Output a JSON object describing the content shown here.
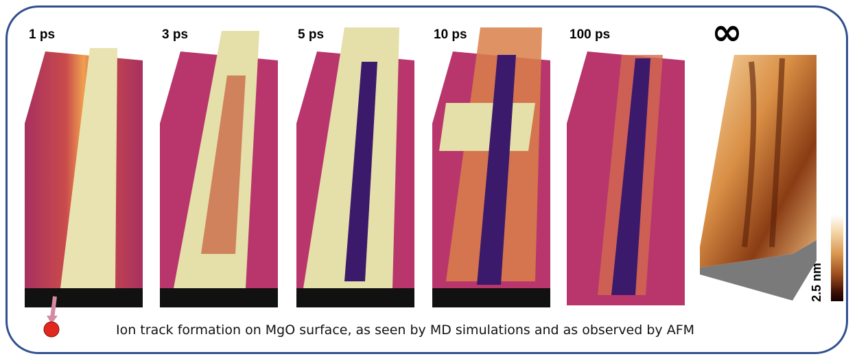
{
  "panels": [
    {
      "label": "1 ps"
    },
    {
      "label": "3 ps"
    },
    {
      "label": "5 ps"
    },
    {
      "label": "10 ps"
    },
    {
      "label": "100 ps"
    }
  ],
  "afm": {
    "symbol": "∞",
    "scale_label": "2.5 nm"
  },
  "caption": "Ion track formation on MgO surface, as seen by MD simulations and as observed by AFM",
  "colors": {
    "frame": "#2f4f8f",
    "surface": "#b8366b",
    "track": "#f0eab8",
    "crater": "#3b1a6b",
    "ion": "#e0281e"
  }
}
